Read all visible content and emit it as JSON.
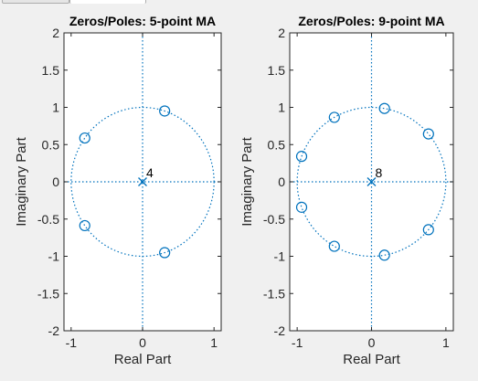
{
  "window": {
    "tabs": [
      {
        "label": ""
      },
      {
        "label": ""
      }
    ]
  },
  "colors": {
    "marker": "#0072bd",
    "axis": "#262626",
    "background": "#f0f0f0",
    "plot_bg": "#ffffff"
  },
  "chart_data": [
    {
      "type": "scatter",
      "title": "Zeros/Poles: 5-point MA",
      "xlabel": "Real Part",
      "ylabel": "Imaginary Part",
      "xlim": [
        -1.1,
        1.1
      ],
      "ylim": [
        -2,
        2
      ],
      "xticks": [
        -1,
        0,
        1
      ],
      "xtick_labels": [
        "-1",
        "0",
        "1"
      ],
      "yticks": [
        2,
        1.5,
        1,
        0.5,
        0,
        -0.5,
        -1,
        -1.5,
        -2
      ],
      "ytick_labels": [
        "2",
        "1.5",
        "1",
        "0.5",
        "0",
        "-0.5",
        "-1",
        "-1.5",
        "-2"
      ],
      "unit_circle": true,
      "zeros": [
        {
          "x": 0.309,
          "y": 0.951
        },
        {
          "x": -0.809,
          "y": 0.588
        },
        {
          "x": -0.809,
          "y": -0.588
        },
        {
          "x": 0.309,
          "y": -0.951
        }
      ],
      "poles": [
        {
          "x": 0,
          "y": 0
        }
      ],
      "pole_label": "4"
    },
    {
      "type": "scatter",
      "title": "Zeros/Poles: 9-point MA",
      "xlabel": "Real Part",
      "ylabel": "Imaginary Part",
      "xlim": [
        -1.1,
        1.1
      ],
      "ylim": [
        -2,
        2
      ],
      "xticks": [
        -1,
        0,
        1
      ],
      "xtick_labels": [
        "-1",
        "0",
        "1"
      ],
      "yticks": [
        2,
        1.5,
        1,
        0.5,
        0,
        -0.5,
        -1,
        -1.5,
        -2
      ],
      "ytick_labels": [
        "2",
        "1.5",
        "1",
        "0.5",
        "0",
        "-0.5",
        "-1",
        "-1.5",
        "-2"
      ],
      "unit_circle": true,
      "zeros": [
        {
          "x": 0.766,
          "y": 0.643
        },
        {
          "x": 0.174,
          "y": 0.985
        },
        {
          "x": -0.5,
          "y": 0.866
        },
        {
          "x": -0.94,
          "y": 0.342
        },
        {
          "x": -0.94,
          "y": -0.342
        },
        {
          "x": -0.5,
          "y": -0.866
        },
        {
          "x": 0.174,
          "y": -0.985
        },
        {
          "x": 0.766,
          "y": -0.643
        }
      ],
      "poles": [
        {
          "x": 0,
          "y": 0
        }
      ],
      "pole_label": "8"
    }
  ]
}
